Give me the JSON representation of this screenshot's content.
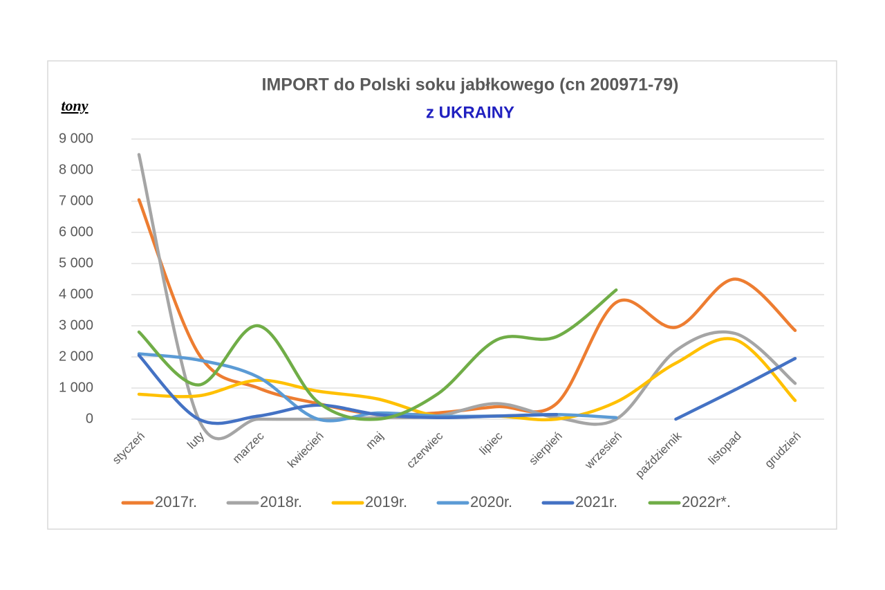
{
  "chart_data": {
    "type": "line",
    "title": "IMPORT do Polski soku jabłkowego (cn 200971-79)",
    "subtitle": "z UKRAINY",
    "y_label": "tony",
    "categories": [
      "styczeń",
      "luty",
      "marzec",
      "kwiecień",
      "maj",
      "czerwiec",
      "lipiec",
      "sierpień",
      "wrzesień",
      "październik",
      "listopad",
      "grudzień"
    ],
    "series": [
      {
        "name": "2017r.",
        "color": "#ed7d31",
        "values": [
          7050,
          2100,
          1000,
          500,
          150,
          200,
          400,
          500,
          3750,
          2950,
          4500,
          2850
        ]
      },
      {
        "name": "2018r.",
        "color": "#a5a5a5",
        "values": [
          8500,
          0,
          0,
          0,
          50,
          100,
          500,
          50,
          0,
          2200,
          2750,
          1150
        ]
      },
      {
        "name": "2019r.",
        "color": "#ffc000",
        "values": [
          800,
          750,
          1250,
          900,
          650,
          100,
          100,
          0,
          550,
          1800,
          2550,
          600
        ]
      },
      {
        "name": "2020r.",
        "color": "#5b9bd5",
        "values": [
          2100,
          1900,
          1350,
          0,
          200,
          100,
          100,
          150,
          50,
          null,
          null,
          null
        ]
      },
      {
        "name": "2021r.",
        "color": "#4472c4",
        "values": [
          2050,
          0,
          100,
          450,
          150,
          50,
          100,
          150,
          null,
          0,
          950,
          1950
        ]
      },
      {
        "name": "2022r*.",
        "color": "#70ad47",
        "values": [
          2800,
          1100,
          3000,
          550,
          0,
          800,
          2550,
          2650,
          4150,
          null,
          null,
          null
        ]
      }
    ],
    "ylim": [
      0,
      9000
    ],
    "yticks": [
      0,
      {
        "value": 1000,
        "label": "1 000"
      },
      {
        "value": 2000,
        "label": "2 000"
      },
      {
        "value": 3000,
        "label": "3 000"
      },
      {
        "value": 4000,
        "label": "4 000"
      },
      {
        "value": 5000,
        "label": "5 000"
      },
      {
        "value": 6000,
        "label": "6 000"
      },
      {
        "value": 7000,
        "label": "7 000"
      },
      {
        "value": 8000,
        "label": "8 000"
      },
      {
        "value": 9000,
        "label": "9 000"
      }
    ],
    "grid": true,
    "smooth": true,
    "legend": "bottom"
  }
}
